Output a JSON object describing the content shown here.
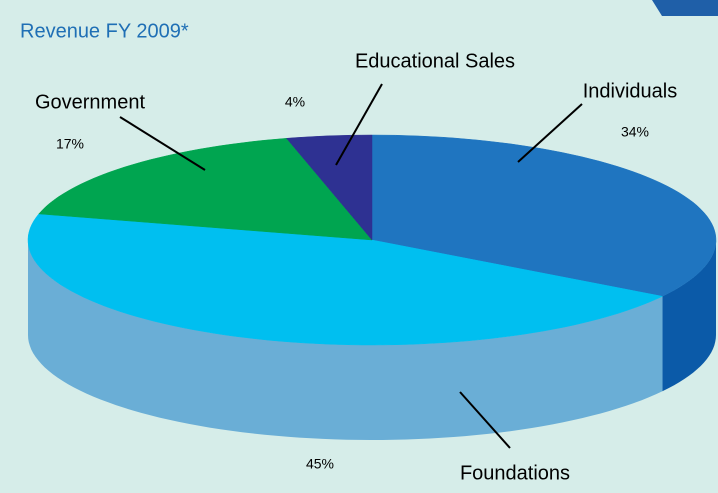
{
  "chart_data": {
    "type": "pie3d",
    "title": "Revenue FY 2009*",
    "categories": [
      "Individuals",
      "Foundations",
      "Government",
      "Educational Sales"
    ],
    "values": [
      34,
      45,
      17,
      4
    ],
    "value_labels": [
      "34%",
      "45%",
      "17%",
      "4%"
    ],
    "colors": [
      "#1f75c0",
      "#00bff0",
      "#00a550",
      "#2e3192"
    ],
    "side_colors": [
      "#0b5aa8",
      "#6aaed6",
      "#008a40",
      "#23267a"
    ]
  }
}
